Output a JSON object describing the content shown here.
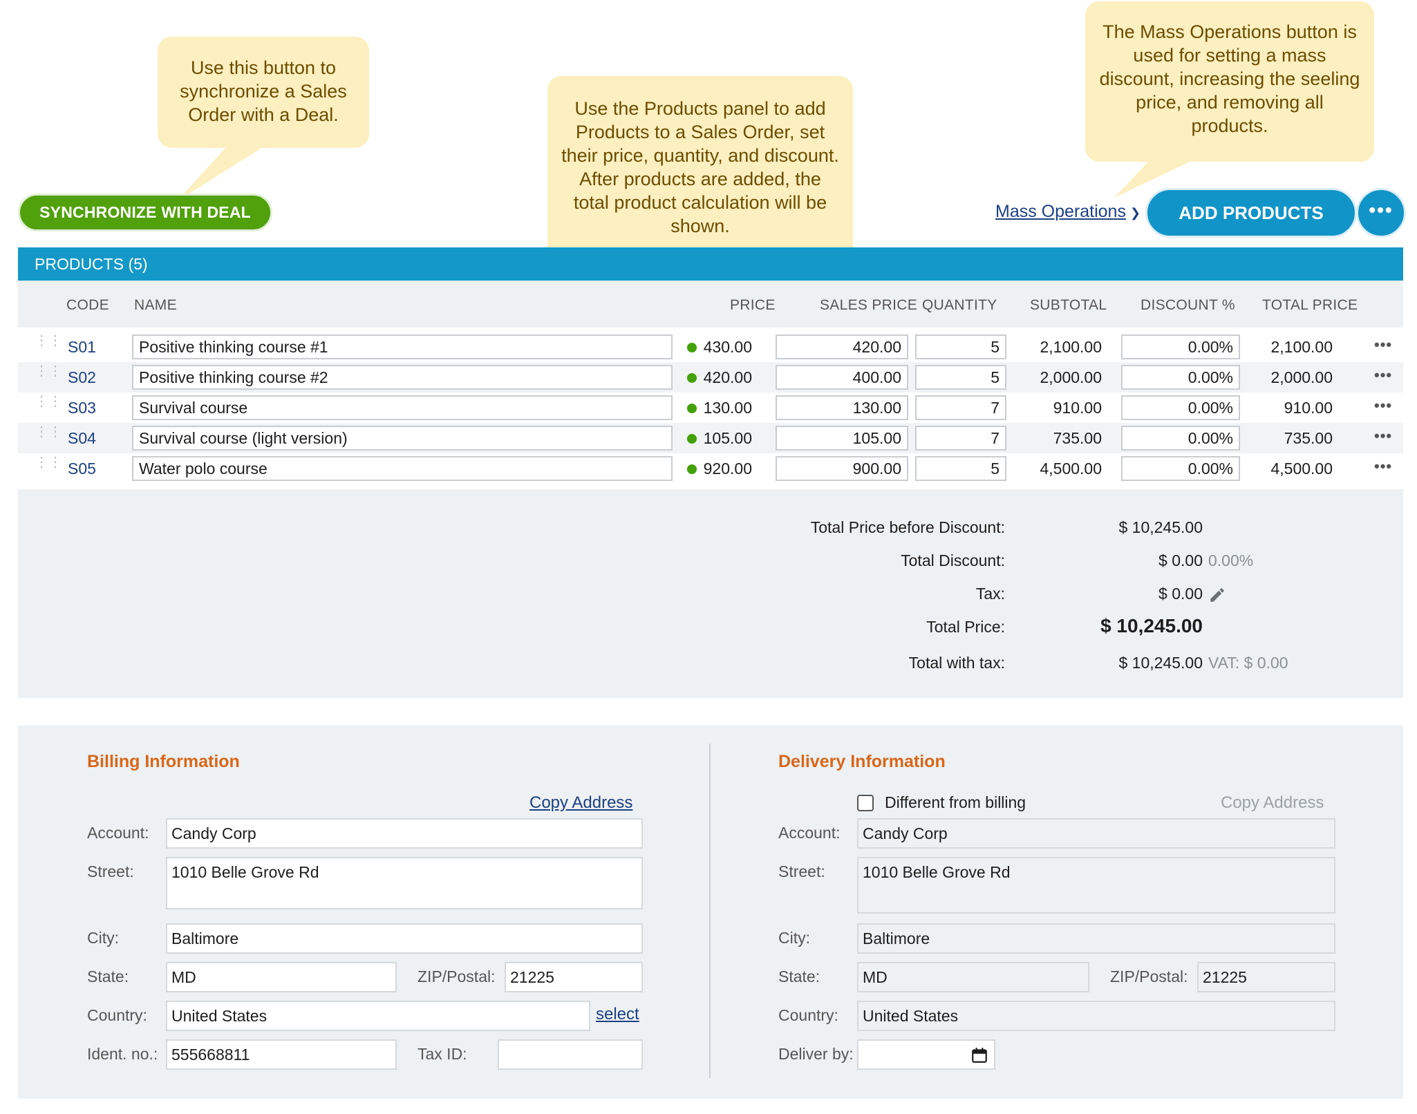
{
  "toolbar": {
    "sync_label": "SYNCHRONIZE WITH DEAL",
    "mass_ops_label": "Mass Operations",
    "add_products_label": "ADD PRODUCTS",
    "more_label": "•••"
  },
  "callouts": {
    "sync": "Use this button to synchronize a Sales Order with a Deal.",
    "products": "Use the Products panel to add Products to a Sales Order, set their price, quantity, and discount. After products are added, the total product calculation will be shown.",
    "mass_ops": "The Mass Operations button is used for setting a mass discount, increasing the seeling price, and removing all products."
  },
  "products": {
    "title": "PRODUCTS (5)",
    "columns": [
      "CODE",
      "NAME",
      "PRICE",
      "SALES PRICE",
      "QUANTITY",
      "SUBTOTAL",
      "DISCOUNT %",
      "TOTAL PRICE"
    ],
    "rows": [
      {
        "code": "S01",
        "name": "Positive thinking course #1",
        "price": "430.00",
        "sales_price": "420.00",
        "qty": "5",
        "subtotal": "2,100.00",
        "discount": "0.00%",
        "total": "2,100.00"
      },
      {
        "code": "S02",
        "name": "Positive thinking course #2",
        "price": "420.00",
        "sales_price": "400.00",
        "qty": "5",
        "subtotal": "2,000.00",
        "discount": "0.00%",
        "total": "2,000.00"
      },
      {
        "code": "S03",
        "name": "Survival course",
        "price": "130.00",
        "sales_price": "130.00",
        "qty": "7",
        "subtotal": "910.00",
        "discount": "0.00%",
        "total": "910.00"
      },
      {
        "code": "S04",
        "name": "Survival course (light version)",
        "price": "105.00",
        "sales_price": "105.00",
        "qty": "7",
        "subtotal": "735.00",
        "discount": "0.00%",
        "total": "735.00"
      },
      {
        "code": "S05",
        "name": "Water polo course",
        "price": "920.00",
        "sales_price": "900.00",
        "qty": "5",
        "subtotal": "4,500.00",
        "discount": "0.00%",
        "total": "4,500.00"
      }
    ],
    "row_more": "•••"
  },
  "totals": {
    "before_discount_label": "Total Price before Discount:",
    "before_discount_value": "$ 10,245.00",
    "discount_label": "Total Discount:",
    "discount_value": "$ 0.00",
    "discount_pct": "0.00%",
    "tax_label": "Tax:",
    "tax_value": "$ 0.00",
    "total_label": "Total Price:",
    "total_value": "$ 10,245.00",
    "with_tax_label": "Total with tax:",
    "with_tax_value": "$ 10,245.00",
    "vat": "VAT: $ 0.00"
  },
  "billing": {
    "title": "Billing Information",
    "copy_address": "Copy Address",
    "account_label": "Account:",
    "account": "Candy Corp",
    "street_label": "Street:",
    "street": "1010 Belle Grove Rd",
    "city_label": "City:",
    "city": "Baltimore",
    "state_label": "State:",
    "state": "MD",
    "zip_label": "ZIP/Postal:",
    "zip": "21225",
    "country_label": "Country:",
    "country": "United States",
    "select_link": "select",
    "ident_label": "Ident. no.:",
    "ident": "555668811",
    "taxid_label": "Tax ID:",
    "taxid": ""
  },
  "delivery": {
    "title": "Delivery Information",
    "different_label": "Different from billing",
    "copy_address": "Copy Address",
    "account_label": "Account:",
    "account": "Candy Corp",
    "street_label": "Street:",
    "street": "1010 Belle Grove Rd",
    "city_label": "City:",
    "city": "Baltimore",
    "state_label": "State:",
    "state": "MD",
    "zip_label": "ZIP/Postal:",
    "zip": "21225",
    "country_label": "Country:",
    "country": "United States",
    "deliver_label": "Deliver by:",
    "deliver_date": ""
  },
  "colors": {
    "accent": "#1498c8",
    "sync_green": "#50a10c",
    "section_title": "#d8671a",
    "callout_bg": "#fcefc0",
    "link": "#1b3f83"
  }
}
